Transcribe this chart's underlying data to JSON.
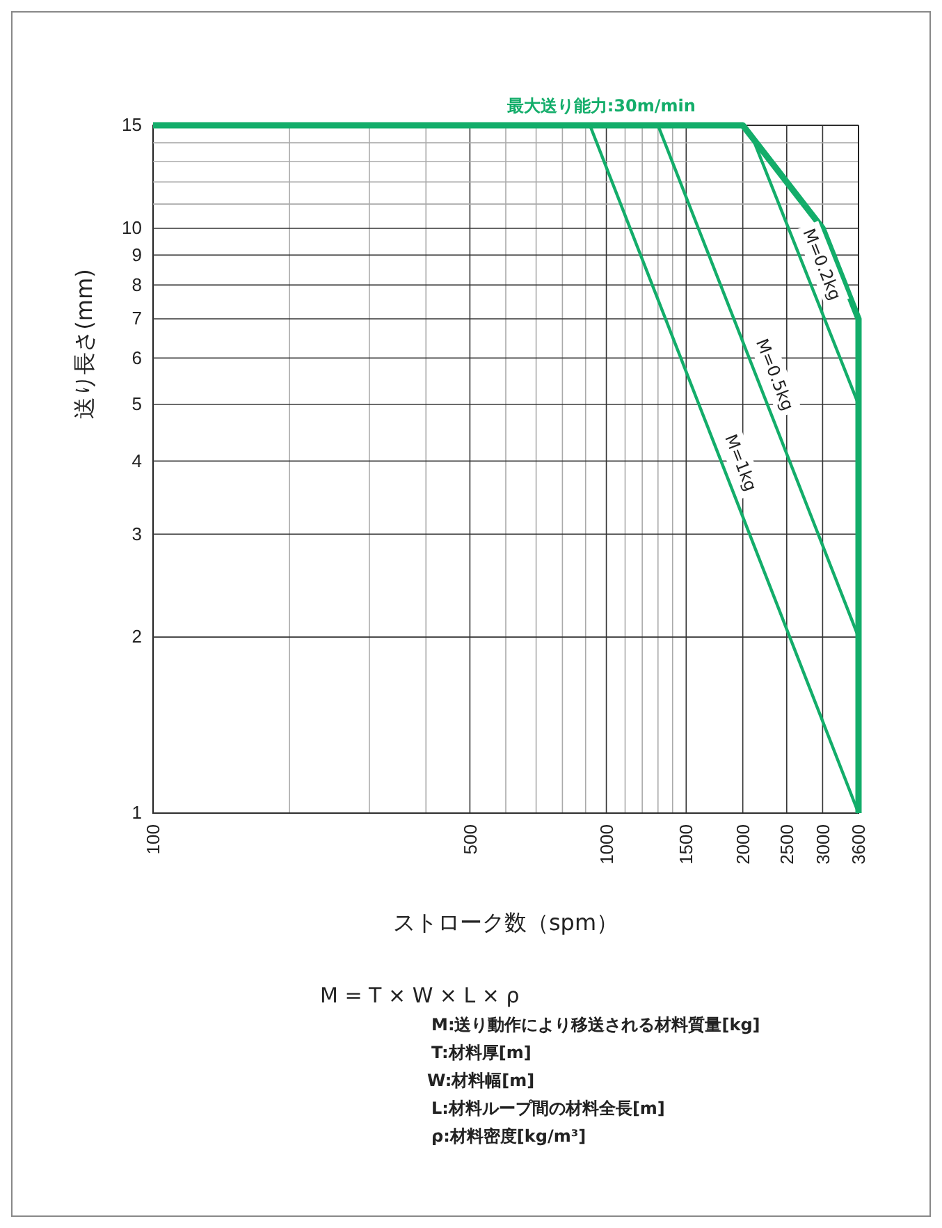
{
  "chart_data": {
    "type": "line",
    "xlabel": "ストローク数（spm）",
    "ylabel": "送り長さ(mm)",
    "log": "xy",
    "xlim": [
      100,
      3600
    ],
    "xticks": [
      100,
      {
        "value": 200,
        "label": null
      },
      {
        "value": 300,
        "label": null
      },
      {
        "value": 400,
        "label": null
      },
      500,
      {
        "value": 600,
        "label": null
      },
      {
        "value": 700,
        "label": null
      },
      {
        "value": 800,
        "label": null
      },
      {
        "value": 900,
        "label": null
      },
      1000,
      {
        "value": 1100,
        "label": null
      },
      {
        "value": 1200,
        "label": null
      },
      {
        "value": 1300,
        "label": null
      },
      {
        "value": 1400,
        "label": null
      },
      1500,
      2000,
      2500,
      3000,
      3600
    ],
    "ylim": [
      1,
      15
    ],
    "yticks": [
      1,
      2,
      3,
      4,
      5,
      6,
      7,
      8,
      9,
      10,
      {
        "value": 11,
        "label": null
      },
      {
        "value": 12,
        "label": null
      },
      {
        "value": 13,
        "label": null
      },
      {
        "value": 14,
        "label": null
      },
      15
    ],
    "grid": true,
    "legend": false,
    "marker": "none",
    "line_style": "solid",
    "series": [
      {
        "name": "最大送り能力:30m/min",
        "color": "#13ad6a",
        "x": [
          100,
          2000,
          2500,
          3000,
          3600,
          3600
        ],
        "values": [
          15,
          15,
          12,
          10,
          7,
          1
        ]
      },
      {
        "name": "M=0.2kg",
        "color": "#13ad6a",
        "x": [
          2100,
          3600
        ],
        "values": [
          14.3,
          5
        ]
      },
      {
        "name": "M=0.5kg",
        "color": "#13ad6a",
        "x": [
          1300,
          3600
        ],
        "values": [
          15,
          2
        ]
      },
      {
        "name": "M=1kg",
        "color": "#13ad6a",
        "x": [
          920,
          3600
        ],
        "values": [
          15,
          1
        ]
      }
    ],
    "annotations": [
      "M = T × W × L × ρ",
      "M:送り動作により移送される材料質量[kg]",
      "T:材料厚[m]",
      "W:材料幅[m]",
      "L:材料ループ間の材料全長[m]",
      "ρ:材料密度[kg/m³]"
    ]
  }
}
